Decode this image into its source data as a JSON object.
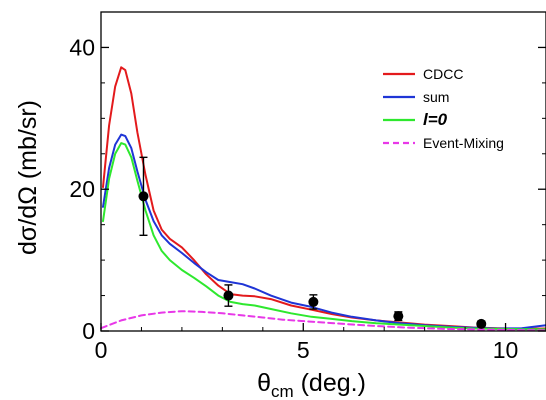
{
  "chart_data": {
    "type": "line",
    "xlabel": {
      "main": "θ",
      "sub": "cm",
      "rest": " (deg.)"
    },
    "ylabel": "dσ/dΩ (mb/sr)",
    "xlim": [
      0,
      11
    ],
    "ylim": [
      0,
      45
    ],
    "x_ticks": [
      0,
      5,
      10
    ],
    "x_tick_labels": [
      "0",
      "5",
      "10"
    ],
    "y_ticks": [
      0,
      20,
      40
    ],
    "y_tick_labels": [
      "0",
      "20",
      "40"
    ],
    "grid": false,
    "legend_position": "top-right",
    "series": [
      {
        "name": "CDCC",
        "color": "#e31a1c",
        "style": "solid",
        "points": [
          [
            0.05,
            20.3
          ],
          [
            0.2,
            29
          ],
          [
            0.35,
            34.5
          ],
          [
            0.5,
            37.2
          ],
          [
            0.6,
            36.8
          ],
          [
            0.75,
            33.5
          ],
          [
            0.9,
            28
          ],
          [
            1.1,
            22
          ],
          [
            1.3,
            17
          ],
          [
            1.5,
            14.3
          ],
          [
            1.7,
            13
          ],
          [
            2.0,
            11.8
          ],
          [
            2.3,
            10
          ],
          [
            2.6,
            8
          ],
          [
            2.9,
            6.4
          ],
          [
            3.2,
            5.2
          ],
          [
            3.5,
            5.0
          ],
          [
            3.8,
            4.9
          ],
          [
            4.2,
            4.5
          ],
          [
            4.7,
            3.6
          ],
          [
            5.2,
            3.0
          ],
          [
            5.7,
            2.4
          ],
          [
            6.2,
            1.9
          ],
          [
            6.8,
            1.5
          ],
          [
            7.4,
            1.2
          ],
          [
            8.0,
            0.9
          ],
          [
            8.6,
            0.7
          ],
          [
            9.2,
            0.5
          ],
          [
            9.8,
            0.4
          ],
          [
            10.4,
            0.3
          ],
          [
            11.0,
            0.35
          ]
        ]
      },
      {
        "name": "sum",
        "color": "#1f35d6",
        "style": "solid",
        "points": [
          [
            0.05,
            17.5
          ],
          [
            0.2,
            23
          ],
          [
            0.35,
            26.3
          ],
          [
            0.5,
            27.7
          ],
          [
            0.6,
            27.5
          ],
          [
            0.75,
            25.8
          ],
          [
            0.9,
            22.5
          ],
          [
            1.1,
            18.5
          ],
          [
            1.3,
            15.5
          ],
          [
            1.5,
            13.5
          ],
          [
            1.7,
            12.3
          ],
          [
            2.0,
            11.0
          ],
          [
            2.3,
            9.6
          ],
          [
            2.6,
            8.3
          ],
          [
            2.9,
            7.2
          ],
          [
            3.2,
            6.9
          ],
          [
            3.5,
            6.6
          ],
          [
            3.8,
            6.0
          ],
          [
            4.2,
            5.0
          ],
          [
            4.7,
            4.0
          ],
          [
            5.2,
            3.4
          ],
          [
            5.7,
            2.6
          ],
          [
            6.2,
            2.0
          ],
          [
            6.8,
            1.5
          ],
          [
            7.4,
            1.1
          ],
          [
            8.0,
            0.8
          ],
          [
            8.6,
            0.6
          ],
          [
            9.2,
            0.45
          ],
          [
            9.8,
            0.35
          ],
          [
            10.4,
            0.4
          ],
          [
            11.0,
            0.8
          ]
        ]
      },
      {
        "name": "l=0",
        "color": "#2ee82e",
        "style": "solid",
        "points": [
          [
            0.05,
            15.5
          ],
          [
            0.2,
            21.5
          ],
          [
            0.35,
            25
          ],
          [
            0.5,
            26.5
          ],
          [
            0.6,
            26.3
          ],
          [
            0.75,
            24.5
          ],
          [
            0.9,
            21.2
          ],
          [
            1.1,
            17
          ],
          [
            1.3,
            13.5
          ],
          [
            1.5,
            11.3
          ],
          [
            1.7,
            10
          ],
          [
            2.0,
            8.6
          ],
          [
            2.3,
            7.5
          ],
          [
            2.6,
            6.3
          ],
          [
            2.9,
            5.0
          ],
          [
            3.2,
            4.1
          ],
          [
            3.5,
            3.8
          ],
          [
            3.8,
            3.6
          ],
          [
            4.2,
            3.1
          ],
          [
            4.7,
            2.5
          ],
          [
            5.2,
            2.0
          ],
          [
            5.7,
            1.7
          ],
          [
            6.2,
            1.4
          ],
          [
            6.8,
            1.1
          ],
          [
            7.4,
            0.9
          ],
          [
            8.0,
            0.7
          ],
          [
            8.6,
            0.5
          ],
          [
            9.2,
            0.35
          ],
          [
            9.8,
            0.3
          ],
          [
            10.4,
            0.25
          ],
          [
            11.0,
            0.25
          ]
        ]
      },
      {
        "name": "Event-Mixing",
        "color": "#e838e8",
        "style": "dashed",
        "points": [
          [
            0.0,
            0.4
          ],
          [
            0.5,
            1.5
          ],
          [
            1.0,
            2.2
          ],
          [
            1.5,
            2.6
          ],
          [
            2.0,
            2.8
          ],
          [
            2.5,
            2.7
          ],
          [
            3.0,
            2.5
          ],
          [
            3.5,
            2.2
          ],
          [
            4.0,
            1.9
          ],
          [
            4.5,
            1.6
          ],
          [
            5.0,
            1.4
          ],
          [
            5.5,
            1.2
          ],
          [
            6.0,
            1.0
          ],
          [
            6.5,
            0.8
          ],
          [
            7.0,
            0.65
          ],
          [
            7.5,
            0.5
          ],
          [
            8.0,
            0.4
          ],
          [
            8.5,
            0.3
          ],
          [
            9.0,
            0.25
          ],
          [
            9.5,
            0.2
          ],
          [
            10.0,
            0.15
          ],
          [
            10.5,
            0.12
          ],
          [
            11.0,
            0.1
          ]
        ]
      }
    ],
    "data_points": [
      {
        "x": 1.05,
        "y": 19.0,
        "yerr": 5.5
      },
      {
        "x": 3.15,
        "y": 5.0,
        "yerr": 1.5
      },
      {
        "x": 5.25,
        "y": 4.1,
        "yerr": 1.0
      },
      {
        "x": 7.35,
        "y": 2.1,
        "yerr": 0.6
      },
      {
        "x": 9.4,
        "y": 1.0,
        "yerr": 0.4
      }
    ]
  }
}
